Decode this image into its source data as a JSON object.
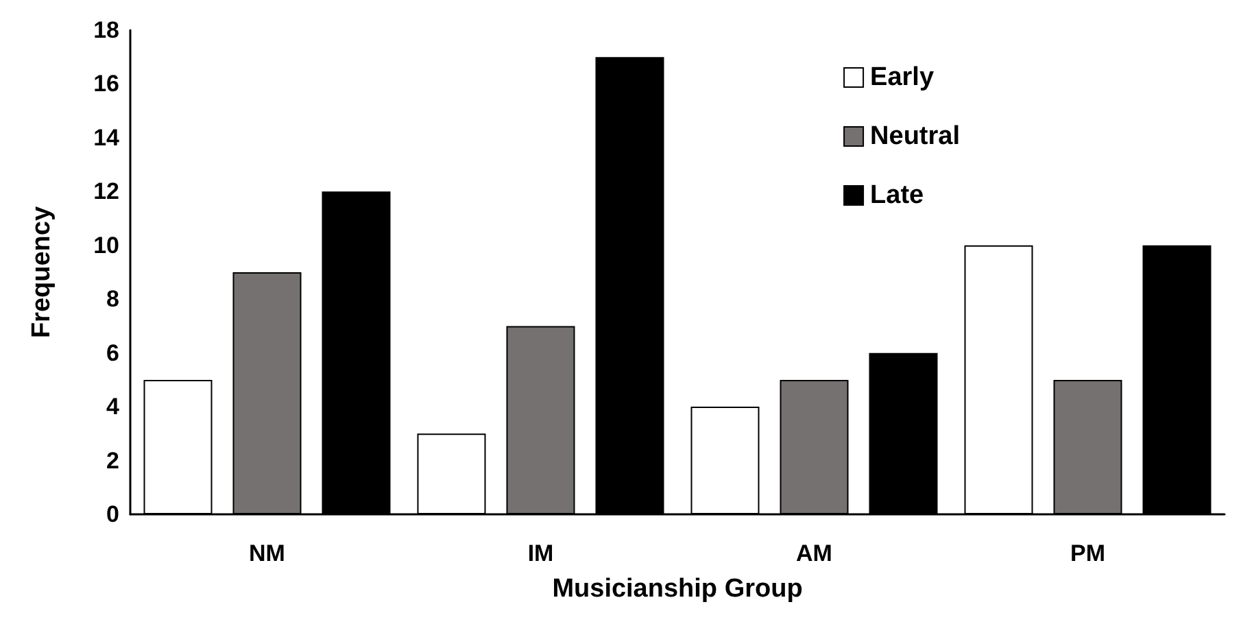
{
  "chart_data": {
    "type": "bar",
    "xlabel": "Musicianship Group",
    "ylabel": "Frequency",
    "categories": [
      "NM",
      "IM",
      "AM",
      "PM"
    ],
    "series": [
      {
        "name": "Early",
        "color": "#ffffff",
        "values": [
          5,
          3,
          4,
          10
        ]
      },
      {
        "name": "Neutral",
        "color": "#767171",
        "values": [
          9,
          7,
          5,
          5
        ]
      },
      {
        "name": "Late",
        "color": "#000000",
        "values": [
          12,
          17,
          6,
          10
        ]
      }
    ],
    "ylim": [
      0,
      18
    ],
    "yticks": [
      0,
      2,
      4,
      6,
      8,
      10,
      12,
      14,
      16,
      18
    ],
    "grid": false,
    "legend": "top right"
  }
}
